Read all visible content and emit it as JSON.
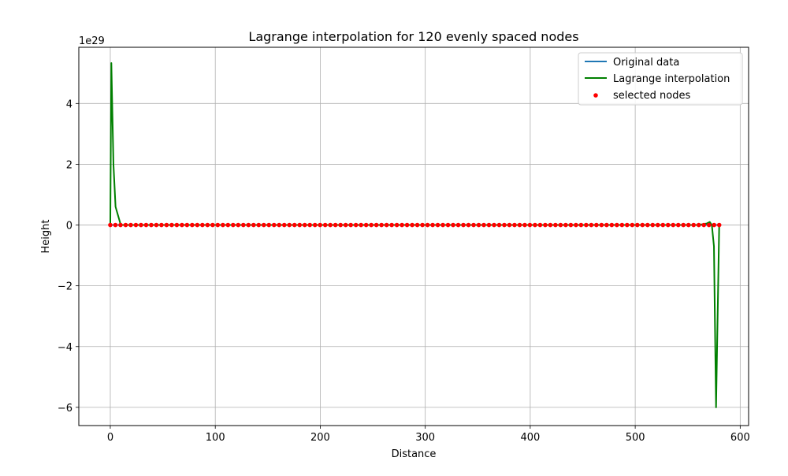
{
  "chart_data": {
    "type": "line",
    "title": "Lagrange interpolation for 120 evenly spaced nodes",
    "xlabel": "Distance",
    "ylabel": "Height",
    "offset_text": "1e29",
    "y_scale_factor": 1e+29,
    "xlim": [
      -30,
      608
    ],
    "ylim": [
      -6.6e+29,
      5.85e+29
    ],
    "x_ticks": [
      0,
      100,
      200,
      300,
      400,
      500,
      600
    ],
    "x_tick_labels": [
      "0",
      "100",
      "200",
      "300",
      "400",
      "500",
      "600"
    ],
    "y_ticks": [
      -6e+29,
      -4e+29,
      -2e+29,
      0,
      2e+29,
      4e+29
    ],
    "y_tick_labels": [
      "−6",
      "−4",
      "−2",
      "0",
      "2",
      "4"
    ],
    "grid": true,
    "legend_position": "top-right",
    "series": [
      {
        "name": "Original data",
        "kind": "line",
        "color": "#1f77b4",
        "x": [
          0,
          580
        ],
        "y": [
          0,
          0
        ]
      },
      {
        "name": "Lagrange interpolation",
        "kind": "line",
        "color": "#008000",
        "x": [
          0,
          1,
          3,
          5,
          10,
          20,
          40,
          100,
          200,
          300,
          400,
          500,
          560,
          568,
          571,
          573,
          575,
          577,
          578,
          580
        ],
        "y": [
          0,
          5.33e+29,
          2e+29,
          6e+28,
          0,
          0,
          0,
          0,
          0,
          0,
          0,
          0,
          0,
          5e+27,
          1e+28,
          0,
          -7e+28,
          -6e+29,
          -4e+29,
          0
        ]
      },
      {
        "name": "selected nodes",
        "kind": "scatter",
        "color": "#ff0000",
        "count": 120,
        "x_start": 0,
        "x_end": 580,
        "y_value": 0
      }
    ]
  }
}
